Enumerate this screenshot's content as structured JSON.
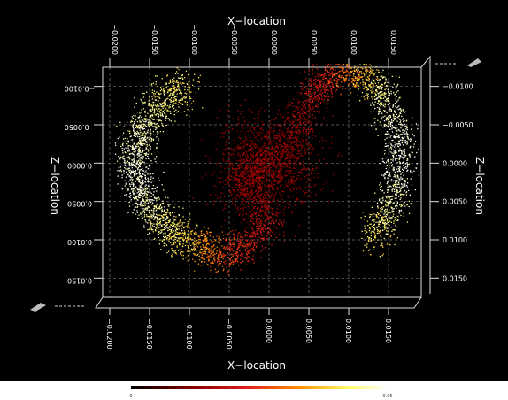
{
  "chart_data": {
    "type": "scatter",
    "title": "",
    "view": "3D scatter viewed along the y-axis (x-z projection)",
    "x_axis": {
      "label_top": "X−location",
      "label_bottom": "X−location",
      "range": [
        -0.02,
        0.02
      ],
      "ticks_top": [
        "−0.0200",
        "−0.0150",
        "−0.0100",
        "−0.0050",
        "0.0000",
        "0.0050",
        "0.0100",
        "0.0150"
      ],
      "ticks_bottom": [
        "−0.0200",
        "−0.0150",
        "−0.0100",
        "−0.0050",
        "0.0000",
        "0.0050",
        "0.0100",
        "0.0150"
      ]
    },
    "z_axis": {
      "label_left": "Z−location",
      "label_right": "Z−location",
      "range": [
        -0.015,
        0.015
      ],
      "ticks_left": [
        "−0.0100",
        "−0.0050",
        "0.0000",
        "0.0050",
        "0.0100",
        "0.0150"
      ],
      "ticks_right": [
        "−0.0100",
        "−0.0050",
        "0.0000",
        "0.0050",
        "0.0100",
        "0.0150"
      ]
    },
    "grid": true,
    "colorbar": {
      "min": 0,
      "max": 0.05,
      "min_label": "0",
      "max_label": "0.05",
      "colors": [
        "#000000",
        "#8b0000",
        "#e01e1e",
        "#ff8c00",
        "#ffff66",
        "#ffffff"
      ]
    },
    "description": "Two-armed S-shaped particle distribution: dense red core near the centre, yellow-white outer arms curling toward left and right edges",
    "series": [
      {
        "points_sampled": [
          {
            "x": -0.0105,
            "z": -0.0104,
            "c": 0.04
          },
          {
            "x": -0.0145,
            "z": -0.007,
            "c": 0.045
          },
          {
            "x": -0.017,
            "z": -0.002,
            "c": 0.048
          },
          {
            "x": -0.0165,
            "z": 0.003,
            "c": 0.05
          },
          {
            "x": -0.014,
            "z": 0.0075,
            "c": 0.045
          },
          {
            "x": -0.01,
            "z": 0.0105,
            "c": 0.038
          },
          {
            "x": -0.005,
            "z": 0.012,
            "c": 0.025
          },
          {
            "x": 0.0,
            "z": 0.008,
            "c": 0.018
          },
          {
            "x": -0.004,
            "z": 0.002,
            "c": 0.012
          },
          {
            "x": 0.003,
            "z": -0.003,
            "c": 0.012
          },
          {
            "x": 0.006,
            "z": -0.01,
            "c": 0.02
          },
          {
            "x": 0.01,
            "z": -0.013,
            "c": 0.03
          },
          {
            "x": 0.014,
            "z": -0.0095,
            "c": 0.045
          },
          {
            "x": 0.0165,
            "z": -0.003,
            "c": 0.05
          },
          {
            "x": 0.016,
            "z": 0.004,
            "c": 0.048
          },
          {
            "x": 0.013,
            "z": 0.01,
            "c": 0.04
          }
        ]
      }
    ]
  }
}
